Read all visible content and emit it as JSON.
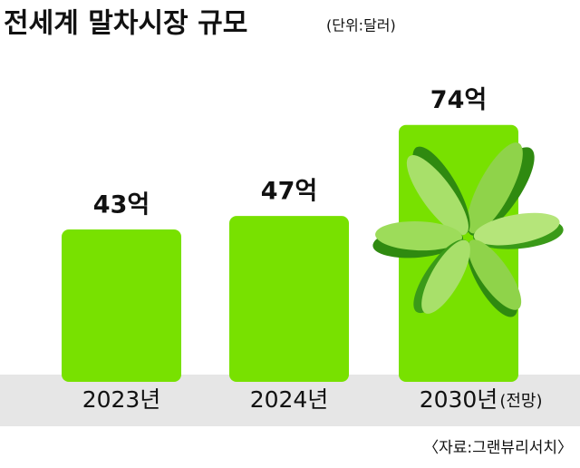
{
  "chart_data": {
    "type": "bar",
    "title": "전세계 말차시장 규모",
    "subtitle": "(단위:달러)",
    "categories": [
      "2023년",
      "2024년",
      "2030년"
    ],
    "category_note": "(전망)",
    "values": [
      43,
      47,
      74
    ],
    "value_labels": [
      "43억",
      "47억",
      "74억"
    ],
    "color": "#78e100",
    "source": "〈자료:그랜뷰리서치〉"
  }
}
